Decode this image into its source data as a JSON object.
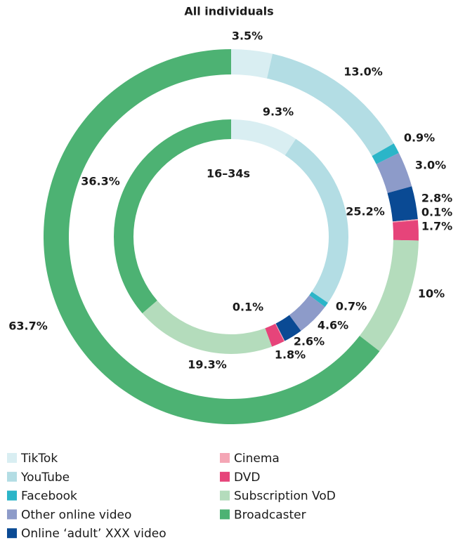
{
  "chart_data": {
    "type": "donut",
    "categories": [
      "TikTok",
      "YouTube",
      "Facebook",
      "Other online video",
      "Online ‘adult’ XXX video",
      "Cinema",
      "DVD",
      "Subscription VoD",
      "Broadcaster"
    ],
    "colors": [
      "#d9eef2",
      "#b3dde4",
      "#2bb5c8",
      "#8d9bc9",
      "#0a4a94",
      "#f4a6b5",
      "#e6447a",
      "#b4dcbc",
      "#4db273"
    ],
    "series": [
      {
        "name": "All individuals",
        "values": [
          3.5,
          13.0,
          0.9,
          3.0,
          2.8,
          0.1,
          1.7,
          10,
          63.7
        ],
        "value_labels": [
          "3.5%",
          "13.0%",
          "0.9%",
          "3.0%",
          "2.8%",
          "0.1%",
          "1.7%",
          "10%",
          "63.7%"
        ]
      },
      {
        "name": "16–34s",
        "values": [
          9.3,
          25.2,
          0.7,
          4.6,
          2.6,
          0.1,
          1.8,
          19.3,
          36.3
        ],
        "value_labels": [
          "9.3%",
          "25.2%",
          "0.7%",
          "4.6%",
          "2.6%",
          "0.1%",
          "1.8%",
          "19.3%",
          "36.3%"
        ]
      }
    ]
  }
}
